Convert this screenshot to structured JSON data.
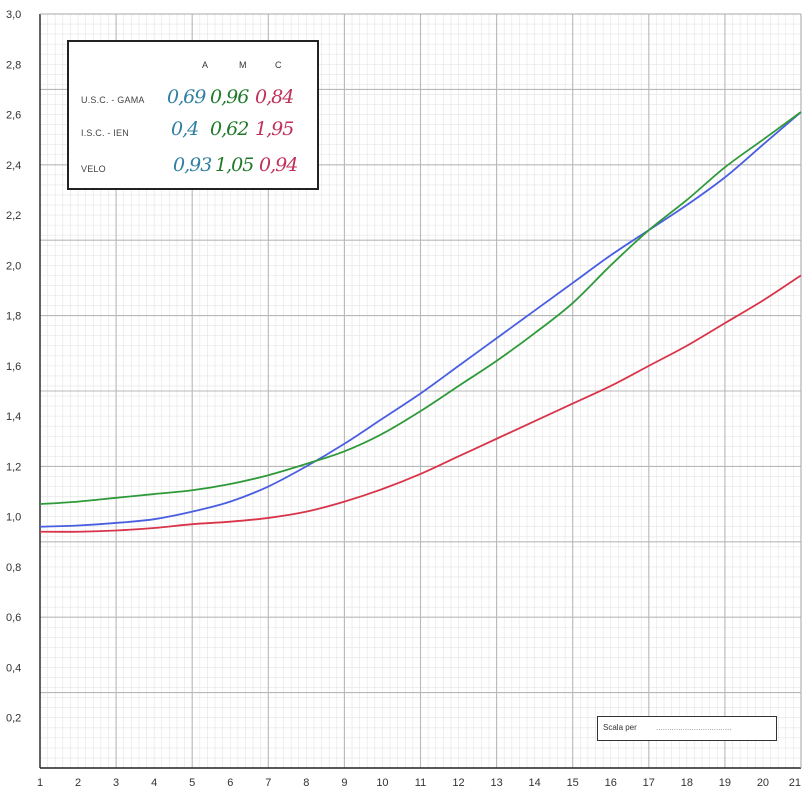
{
  "chart_data": {
    "type": "line",
    "x": [
      1,
      2,
      3,
      4,
      5,
      6,
      7,
      8,
      9,
      10,
      11,
      12,
      13,
      14,
      15,
      16,
      17,
      18,
      19,
      20,
      21
    ],
    "xlim": [
      1,
      21
    ],
    "ylim": [
      0,
      3.0
    ],
    "grid": true,
    "xticks": [
      "1",
      "2",
      "3",
      "4",
      "5",
      "6",
      "7",
      "8",
      "9",
      "10",
      "11",
      "12",
      "13",
      "14",
      "15",
      "16",
      "17",
      "18",
      "19",
      "20",
      "21"
    ],
    "yticks": [
      "0,2",
      "0,4",
      "0,6",
      "0,8",
      "1,0",
      "1,2",
      "1,4",
      "1,6",
      "1,8",
      "2,0",
      "2,2",
      "2,4",
      "2,6",
      "2,8",
      "3,0"
    ],
    "ytick_values": [
      0.2,
      0.4,
      0.6,
      0.8,
      1.0,
      1.2,
      1.4,
      1.6,
      1.8,
      2.0,
      2.2,
      2.4,
      2.6,
      2.8,
      3.0
    ],
    "series": [
      {
        "color": "#4a5fe0",
        "values": [
          0.96,
          0.965,
          0.975,
          0.99,
          1.02,
          1.06,
          1.12,
          1.2,
          1.29,
          1.39,
          1.49,
          1.6,
          1.71,
          1.82,
          1.93,
          2.04,
          2.14,
          2.24,
          2.35,
          2.48,
          2.61
        ]
      },
      {
        "color": "#2f9a3a",
        "values": [
          1.05,
          1.06,
          1.075,
          1.09,
          1.105,
          1.13,
          1.165,
          1.21,
          1.26,
          1.33,
          1.42,
          1.52,
          1.62,
          1.73,
          1.85,
          2.0,
          2.14,
          2.26,
          2.39,
          2.5,
          2.61
        ]
      },
      {
        "color": "#d9344a",
        "values": [
          0.94,
          0.94,
          0.945,
          0.955,
          0.97,
          0.98,
          0.995,
          1.02,
          1.06,
          1.11,
          1.17,
          1.24,
          1.31,
          1.38,
          1.45,
          1.52,
          1.6,
          1.68,
          1.77,
          1.86,
          1.96
        ]
      }
    ]
  },
  "legend": {
    "headers": [
      "A",
      "M",
      "C"
    ],
    "rows": [
      {
        "label": "U.S.C. - GAMA",
        "values": [
          "0,69",
          "0,96",
          "0,84"
        ]
      },
      {
        "label": "I.S.C. - IEN",
        "values": [
          "0,4",
          "0,62",
          "1,95"
        ]
      },
      {
        "label": "VELO",
        "values": [
          "0,93",
          "1,05",
          "0,94"
        ]
      }
    ]
  },
  "scale_box": {
    "label": "Scala per",
    "dots": ".................................."
  }
}
